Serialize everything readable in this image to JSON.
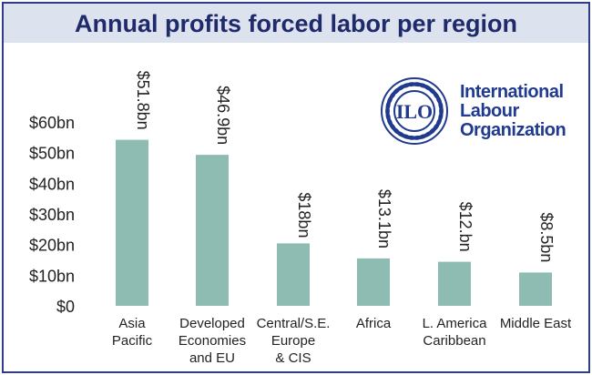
{
  "chart_data": {
    "type": "bar",
    "title": "Annual profits forced labor per region",
    "categories": [
      [
        "Asia",
        "Pacific"
      ],
      [
        "Developed",
        "Economies",
        "and EU"
      ],
      [
        "Central/S.E.",
        "Europe",
        "& CIS"
      ],
      [
        "Africa"
      ],
      [
        "L. America",
        "Caribbean"
      ],
      [
        "Middle East"
      ]
    ],
    "values": [
      51.8,
      46.9,
      18,
      13.1,
      12,
      8.5
    ],
    "data_labels": [
      "$51.8bn",
      "$46.9bn",
      "$18bn",
      "$13.1bn",
      "$12.bn",
      "$8.5bn"
    ],
    "yticks": [
      "$0",
      "$10bn",
      "$20bn",
      "$30bn",
      "$40bn",
      "$50bn",
      "$60bn"
    ],
    "ylim": [
      0,
      60
    ],
    "bar_color": "#8fbcb2",
    "grid": false
  },
  "logo": {
    "emblem_text": "ILO",
    "lines": [
      "International",
      "Labour",
      "Organization"
    ],
    "color": "#1f3a8f"
  }
}
